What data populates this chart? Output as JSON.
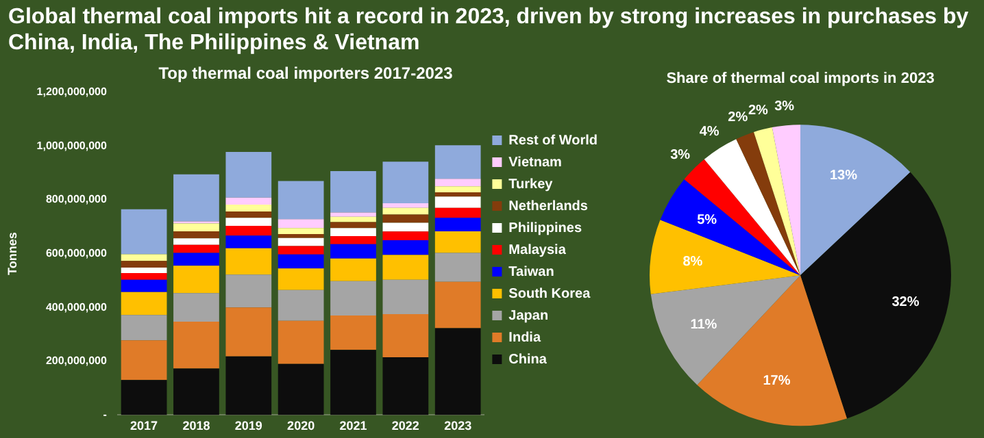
{
  "chart_data": [
    {
      "type": "bar",
      "title": "Global thermal coal imports hit a record in 2023, driven by strong increases in purchases by China, India, The Philippines & Vietnam",
      "subtitle": "Top thermal coal importers 2017-2023",
      "ylabel": "Tonnes",
      "categories": [
        "2017",
        "2018",
        "2019",
        "2020",
        "2021",
        "2022",
        "2023"
      ],
      "stacked": true,
      "legend": "right",
      "ylim": [
        0,
        1200000000
      ],
      "yticks": [
        {
          "value": 0,
          "label": "-"
        },
        {
          "value": 200000000,
          "label": "200,000,000"
        },
        {
          "value": 400000000,
          "label": "400,000,000"
        },
        {
          "value": 600000000,
          "label": "600,000,000"
        },
        {
          "value": 800000000,
          "label": "800,000,000"
        },
        {
          "value": 1000000000,
          "label": "1,000,000,000"
        },
        {
          "value": 1200000000,
          "label": "1,200,000,000"
        }
      ],
      "series": [
        {
          "name": "China",
          "color": "#0d0d0d",
          "values": [
            130000000,
            173000000,
            218000000,
            190000000,
            242000000,
            215000000,
            323000000
          ]
        },
        {
          "name": "India",
          "color": "#e07b28",
          "values": [
            148000000,
            174000000,
            182000000,
            160000000,
            128000000,
            160000000,
            172000000
          ]
        },
        {
          "name": "Japan",
          "color": "#a5a5a5",
          "values": [
            94000000,
            106000000,
            122000000,
            115000000,
            128000000,
            128000000,
            108000000
          ]
        },
        {
          "name": "South Korea",
          "color": "#ffc000",
          "values": [
            85000000,
            102000000,
            98000000,
            80000000,
            84000000,
            92000000,
            80000000
          ]
        },
        {
          "name": "Taiwan",
          "color": "#0000ff",
          "values": [
            46000000,
            48000000,
            47000000,
            52000000,
            53000000,
            55000000,
            50000000
          ]
        },
        {
          "name": "Malaysia",
          "color": "#ff0000",
          "values": [
            25000000,
            30000000,
            36000000,
            31000000,
            30000000,
            32000000,
            37000000
          ]
        },
        {
          "name": "Philippines",
          "color": "#ffffff",
          "values": [
            20000000,
            24000000,
            30000000,
            30000000,
            30000000,
            33000000,
            42000000
          ]
        },
        {
          "name": "Netherlands",
          "color": "#843c0c",
          "values": [
            25000000,
            26000000,
            24000000,
            15000000,
            22000000,
            30000000,
            16000000
          ]
        },
        {
          "name": "Turkey",
          "color": "#ffff99",
          "values": [
            25000000,
            29000000,
            25000000,
            22000000,
            20000000,
            25000000,
            22000000
          ]
        },
        {
          "name": "Vietnam",
          "color": "#ffccff",
          "values": [
            null,
            8000000,
            26000000,
            33000000,
            16000000,
            17000000,
            28000000
          ]
        },
        {
          "name": "Rest of World",
          "color": "#8faadc",
          "values": [
            167000000,
            175000000,
            170000000,
            142000000,
            154000000,
            155000000,
            125000000
          ]
        }
      ]
    },
    {
      "type": "pie",
      "title": "Share of thermal coal imports in 2023",
      "categories": [
        null,
        null,
        null,
        null,
        null,
        null,
        null,
        null,
        null,
        null,
        null
      ],
      "values": [
        13,
        32,
        17,
        11,
        8,
        5,
        3,
        4,
        2,
        2,
        3
      ],
      "colors": [
        "#8faadc",
        "#0d0d0d",
        "#e07b28",
        "#a5a5a5",
        "#ffc000",
        "#0000ff",
        "#ff0000",
        "#ffffff",
        "#843c0c",
        "#ffff99",
        "#ffccff"
      ],
      "value_labels": [
        "13%",
        "32%",
        "17%",
        "11%",
        "8%",
        "5%",
        "3%",
        "4%",
        "2%",
        "2%",
        "3%"
      ]
    }
  ]
}
